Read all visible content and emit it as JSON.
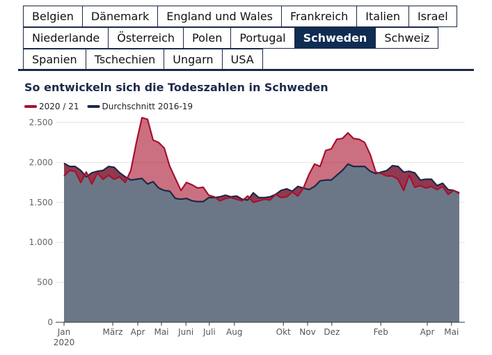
{
  "tabs": {
    "rows": [
      [
        "Belgien",
        "Dänemark",
        "England und Wales",
        "Frankreich",
        "Italien",
        "Israel"
      ],
      [
        "Niederlande",
        "Österreich",
        "Polen",
        "Portugal",
        "Schweden",
        "Schweiz"
      ],
      [
        "Spanien",
        "Tschechien",
        "Ungarn",
        "USA"
      ]
    ],
    "active": "Schweden"
  },
  "chart_data": {
    "type": "area",
    "title": "So entwickeln sich die Todeszahlen in Schweden",
    "x": [
      0,
      1,
      2,
      3,
      4,
      5,
      6,
      7,
      8,
      9,
      10,
      11,
      12,
      13,
      14,
      15,
      16,
      17,
      18,
      19,
      20,
      21,
      22,
      23,
      24,
      25,
      26,
      27,
      28,
      29,
      30,
      31,
      32,
      33,
      34,
      35,
      36,
      37,
      38,
      39,
      40,
      41,
      42,
      43,
      44,
      45,
      46,
      47,
      48,
      49,
      50,
      51,
      52,
      53,
      54,
      55,
      56,
      57,
      58,
      59,
      60,
      61,
      62,
      63,
      64,
      65,
      66,
      67,
      68,
      69,
      70,
      71
    ],
    "series": [
      {
        "name": "2020 / 21",
        "color": "#a8102d",
        "values": [
          1830,
          1900,
          1890,
          1750,
          1880,
          1730,
          1870,
          1790,
          1840,
          1790,
          1820,
          1750,
          1900,
          2250,
          2560,
          2540,
          2280,
          2250,
          2180,
          1950,
          1800,
          1650,
          1750,
          1720,
          1680,
          1690,
          1590,
          1570,
          1520,
          1550,
          1560,
          1540,
          1520,
          1580,
          1500,
          1520,
          1540,
          1530,
          1600,
          1560,
          1570,
          1630,
          1580,
          1680,
          1850,
          1980,
          1950,
          2150,
          2170,
          2290,
          2300,
          2370,
          2300,
          2290,
          2250,
          2100,
          1880,
          1860,
          1830,
          1830,
          1790,
          1650,
          1840,
          1690,
          1710,
          1680,
          1700,
          1660,
          1700,
          1600,
          1650,
          1610
        ]
      },
      {
        "name": "Durchschnitt 2016-19",
        "color": "#1b2a47",
        "values": [
          1990,
          1950,
          1950,
          1900,
          1820,
          1870,
          1890,
          1900,
          1950,
          1940,
          1870,
          1820,
          1780,
          1790,
          1800,
          1730,
          1760,
          1680,
          1650,
          1640,
          1550,
          1540,
          1550,
          1520,
          1510,
          1510,
          1560,
          1560,
          1570,
          1590,
          1570,
          1580,
          1540,
          1530,
          1620,
          1560,
          1560,
          1570,
          1600,
          1650,
          1670,
          1640,
          1700,
          1680,
          1660,
          1700,
          1770,
          1780,
          1780,
          1840,
          1900,
          1980,
          1950,
          1950,
          1950,
          1890,
          1860,
          1880,
          1900,
          1960,
          1950,
          1880,
          1890,
          1870,
          1780,
          1790,
          1790,
          1710,
          1740,
          1660,
          1650,
          1620
        ]
      }
    ],
    "xlim": [
      0,
      71
    ],
    "xticks": [
      {
        "value": 0,
        "label": "Jan\n2020"
      },
      {
        "value": 8.75,
        "label": "März"
      },
      {
        "value": 13.25,
        "label": "Apr"
      },
      {
        "value": 17.5,
        "label": "Mai"
      },
      {
        "value": 21.9,
        "label": "Juni"
      },
      {
        "value": 26.1,
        "label": "Juli"
      },
      {
        "value": 30.6,
        "label": "Aug"
      },
      {
        "value": 39.4,
        "label": "Okt"
      },
      {
        "value": 43.75,
        "label": "Nov"
      },
      {
        "value": 48.1,
        "label": "Dez"
      },
      {
        "value": 56.9,
        "label": "Feb"
      },
      {
        "value": 65.25,
        "label": "Apr"
      },
      {
        "value": 69.6,
        "label": "Mai"
      }
    ],
    "ylim": [
      0,
      2500
    ],
    "yticks": [
      0,
      500,
      {
        "value": 1000,
        "label": "1.000"
      },
      {
        "value": 1500,
        "label": "1.500"
      },
      {
        "value": 2000,
        "label": "2.000"
      },
      {
        "value": 2500,
        "label": "2.500"
      }
    ],
    "grid": true,
    "legend": "top-left"
  }
}
